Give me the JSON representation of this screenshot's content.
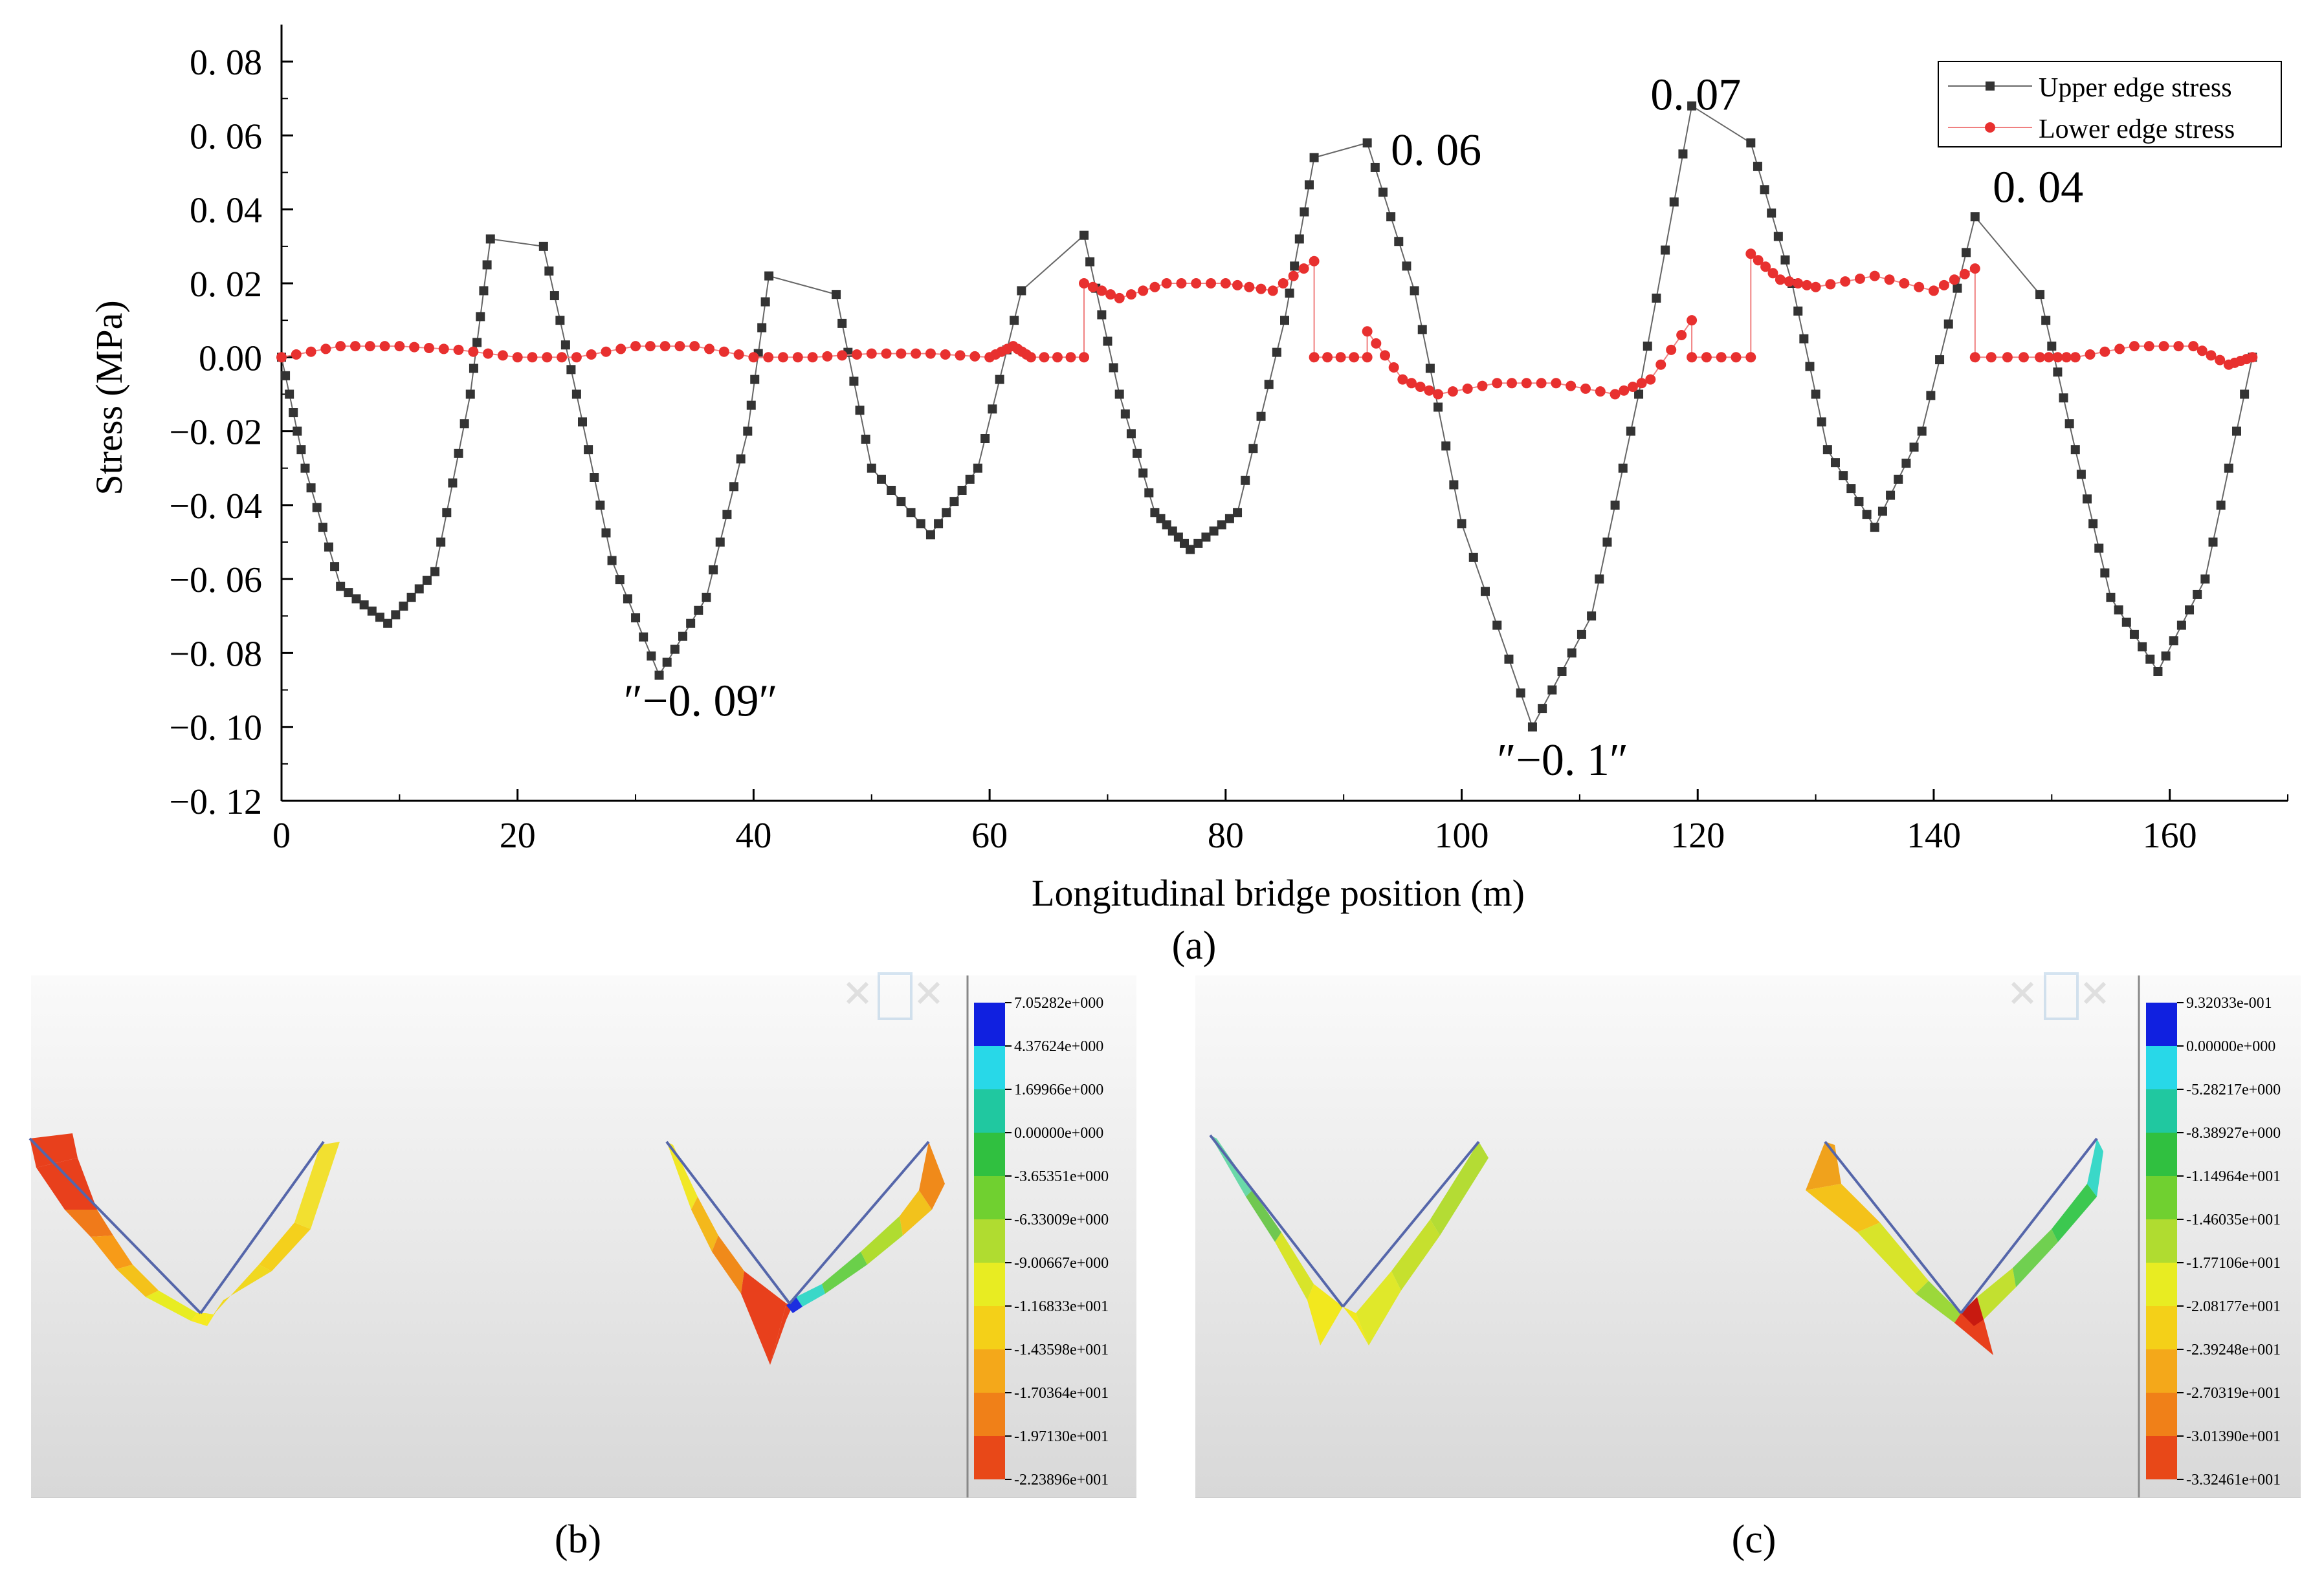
{
  "figure": {
    "panel_a_label": "(a)",
    "panel_b_label": "(b)",
    "panel_c_label": "(c)"
  },
  "colors": {
    "upper": "#333333",
    "lower": "#e8302f"
  },
  "chart_data": [
    {
      "type": "line",
      "panel": "a",
      "xlabel": "Longitudinal bridge position (m)",
      "ylabel": "Stress (MPa)",
      "xlim": [
        0,
        170
      ],
      "ylim": [
        -0.12,
        0.09
      ],
      "xticks": [
        0,
        20,
        40,
        60,
        80,
        100,
        120,
        140,
        160
      ],
      "yticks": [
        0.08,
        0.06,
        0.04,
        0.02,
        0.0,
        -0.02,
        -0.04,
        -0.06,
        -0.08,
        -0.1,
        -0.12
      ],
      "ytick_labels": [
        "0. 08",
        "0. 06",
        "0. 04",
        "0. 02",
        "0.00",
        "−0. 02",
        "−0. 04",
        "−0. 06",
        "−0. 08",
        "−0. 10",
        "−0. 12"
      ],
      "legend": [
        {
          "name": "Upper edge stress",
          "marker": "square"
        },
        {
          "name": "Lower edge stress",
          "marker": "circle"
        }
      ],
      "annotations": [
        {
          "text": "0. 06",
          "x": 94,
          "y": 0.052
        },
        {
          "text": "0. 07",
          "x": 116,
          "y": 0.067
        },
        {
          "text": "0. 04",
          "x": 145,
          "y": 0.042
        },
        {
          "text": "″−0. 09″",
          "x": 29,
          "y": -0.097
        },
        {
          "text": "″−0. 1″",
          "x": 103,
          "y": -0.113
        }
      ],
      "series": [
        {
          "name": "Upper edge stress",
          "color": "#333333",
          "segments": [
            {
              "x": [
                0,
                2,
                5,
                9,
                13,
                16,
                17.7
              ],
              "y": [
                0.0,
                -0.03,
                -0.062,
                -0.072,
                -0.058,
                -0.01,
                0.032
              ]
            },
            {
              "x": [
                22.2,
                25,
                28,
                32,
                36,
                39.5,
                41.3
              ],
              "y": [
                0.03,
                -0.01,
                -0.055,
                -0.086,
                -0.065,
                -0.02,
                0.022
              ]
            },
            {
              "x": [
                47,
                50,
                55,
                59,
                62.7
              ],
              "y": [
                0.017,
                -0.03,
                -0.048,
                -0.03,
                0.018
              ]
            },
            {
              "x": [
                68,
                71,
                74,
                77,
                81,
                85,
                87.5
              ],
              "y": [
                0.033,
                -0.01,
                -0.042,
                -0.052,
                -0.042,
                0.01,
                0.054
              ]
            },
            {
              "x": [
                92,
                96,
                100,
                106,
                111,
                115,
                119.5
              ],
              "y": [
                0.058,
                0.018,
                -0.045,
                -0.1,
                -0.07,
                -0.01,
                0.068
              ]
            },
            {
              "x": [
                124.5,
                128,
                131,
                135,
                139,
                143.5
              ],
              "y": [
                0.058,
                0.02,
                -0.025,
                -0.046,
                -0.02,
                0.038
              ]
            },
            {
              "x": [
                149,
                152,
                155,
                159,
                163,
                167
              ],
              "y": [
                0.017,
                -0.025,
                -0.065,
                -0.085,
                -0.06,
                0.0
              ]
            }
          ]
        },
        {
          "name": "Lower edge stress",
          "color": "#e8302f",
          "segments": [
            {
              "x": [
                0,
                5,
                10,
                15,
                20,
                25,
                30,
                35,
                40,
                45,
                50,
                55,
                60,
                62,
                63.5,
                68
              ],
              "y": [
                0.0,
                0.003,
                0.003,
                0.002,
                0.0,
                0.0,
                0.003,
                0.003,
                0.0,
                0.0,
                0.001,
                0.001,
                0.0,
                0.003,
                0.0,
                0.0
              ]
            },
            {
              "x": [
                68,
                71,
                75,
                80,
                84,
                87.5
              ],
              "y": [
                0.02,
                0.016,
                0.02,
                0.02,
                0.018,
                0.026
              ]
            },
            {
              "x": [
                87.5,
                92
              ],
              "y": [
                0.0,
                0.0
              ]
            },
            {
              "x": [
                92,
                95,
                98,
                103,
                108,
                113,
                116,
                119.5
              ],
              "y": [
                0.007,
                -0.006,
                -0.01,
                -0.007,
                -0.007,
                -0.01,
                -0.006,
                0.01
              ]
            },
            {
              "x": [
                119.5,
                124.5
              ],
              "y": [
                0.0,
                0.0
              ]
            },
            {
              "x": [
                124.5,
                127,
                130,
                135,
                140,
                143.5
              ],
              "y": [
                0.028,
                0.021,
                0.019,
                0.022,
                0.018,
                0.024
              ]
            },
            {
              "x": [
                143.5,
                149,
                152,
                157,
                162,
                165,
                167
              ],
              "y": [
                0.0,
                0.0,
                0.0,
                0.003,
                0.003,
                -0.002,
                0.0
              ]
            }
          ]
        }
      ]
    },
    {
      "type": "heatmap",
      "panel": "b",
      "colorbar_labels": [
        "7.05282e+000",
        "4.37624e+000",
        "1.69966e+000",
        "0.00000e+000",
        "-3.65351e+000",
        "-6.33009e+000",
        "-9.00667e+000",
        "-1.16833e+001",
        "-1.43598e+001",
        "-1.70364e+001",
        "-1.97130e+001",
        "-2.23896e+001"
      ]
    },
    {
      "type": "heatmap",
      "panel": "c",
      "colorbar_labels": [
        "9.32033e-001",
        "0.00000e+000",
        "-5.28217e+000",
        "-8.38927e+000",
        "-1.14964e+001",
        "-1.46035e+001",
        "-1.77106e+001",
        "-2.08177e+001",
        "-2.39248e+001",
        "-2.70319e+001",
        "-3.01390e+001",
        "-3.32461e+001"
      ]
    }
  ]
}
